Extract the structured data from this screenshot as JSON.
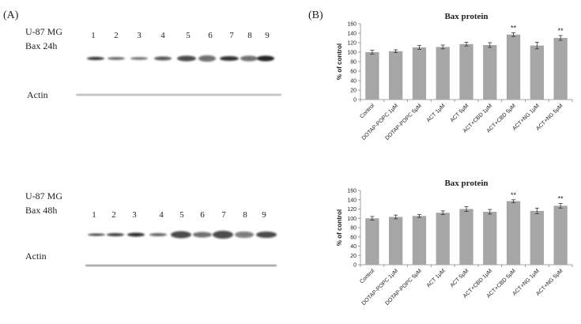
{
  "panel_a": {
    "label": "(A)",
    "blots": [
      {
        "cell_line": "U-87 MG",
        "condition": "Bax 24h",
        "lane_numbers": [
          "1",
          "2",
          "3",
          "4",
          "5",
          "6",
          "7",
          "8",
          "9"
        ],
        "actin_label": "Actin"
      },
      {
        "cell_line": "U-87 MG",
        "condition": "Bax 48h",
        "lane_numbers": [
          "1",
          "2",
          "3",
          "4",
          "5",
          "6",
          "7",
          "8",
          "9"
        ],
        "actin_label": "Actin"
      }
    ]
  },
  "panel_b": {
    "label": "(B)"
  },
  "chart_data": [
    {
      "type": "bar",
      "title": "Bax protein",
      "ylabel": "% of control",
      "xlabel": "",
      "ylim": [
        0,
        160
      ],
      "yticks": [
        0,
        20,
        40,
        60,
        80,
        100,
        120,
        140,
        160
      ],
      "categories": [
        "Control",
        "DOTAP-POPC 1μM",
        "DOTAP-POPC 5μM",
        "ACT 1μM",
        "ACT 5μM",
        "ACT+CBD 1μM",
        "ACT+CBD 5μM",
        "ACT+NG 1μM",
        "ACT+NG 5μM"
      ],
      "values": [
        100,
        102,
        110,
        111,
        117,
        115,
        137,
        114,
        130
      ],
      "errors": [
        4,
        3,
        4,
        4,
        4,
        5,
        4,
        7,
        5
      ],
      "annotations": [
        "",
        "",
        "",
        "",
        "",
        "",
        "**",
        "",
        "**"
      ],
      "bar_color": "#a6a6a6",
      "grid": false
    },
    {
      "type": "bar",
      "title": "Bax protein",
      "ylabel": "% of control",
      "xlabel": "",
      "ylim": [
        0,
        160
      ],
      "yticks": [
        0,
        20,
        40,
        60,
        80,
        100,
        120,
        140,
        160
      ],
      "categories": [
        "Control",
        "DOTAP-POPC 1μM",
        "DOTAP-POPC 5μM",
        "ACT 1μM",
        "ACT 5μM",
        "ACT+CBD 1μM",
        "ACT+CBD 5μM",
        "ACT+NG 1μM",
        "ACT+NG 5μM"
      ],
      "values": [
        100,
        103,
        105,
        112,
        120,
        114,
        137,
        116,
        127
      ],
      "errors": [
        4,
        4,
        3,
        4,
        5,
        5,
        3,
        6,
        5
      ],
      "annotations": [
        "",
        "",
        "",
        "",
        "",
        "",
        "**",
        "",
        "**"
      ],
      "bar_color": "#a6a6a6",
      "grid": false
    }
  ]
}
